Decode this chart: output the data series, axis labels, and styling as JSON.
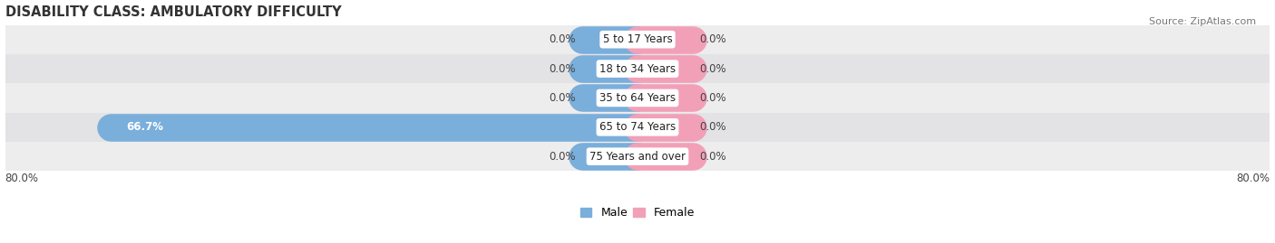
{
  "title": "DISABILITY CLASS: AMBULATORY DIFFICULTY",
  "source": "Source: ZipAtlas.com",
  "categories": [
    "5 to 17 Years",
    "18 to 34 Years",
    "35 to 64 Years",
    "65 to 74 Years",
    "75 Years and over"
  ],
  "male_values": [
    0.0,
    0.0,
    0.0,
    66.7,
    0.0
  ],
  "female_values": [
    0.0,
    0.0,
    0.0,
    0.0,
    0.0
  ],
  "male_color": "#7aaedb",
  "female_color": "#f2a0b8",
  "row_bg_even": "#ededee",
  "row_bg_odd": "#e3e3e5",
  "xlim": 80.0,
  "stub_size": 7.0,
  "title_fontsize": 10.5,
  "source_fontsize": 8,
  "value_fontsize": 8.5,
  "cat_fontsize": 8.5,
  "legend_fontsize": 9,
  "bar_height": 0.62,
  "figsize": [
    14.06,
    2.69
  ],
  "dpi": 100
}
